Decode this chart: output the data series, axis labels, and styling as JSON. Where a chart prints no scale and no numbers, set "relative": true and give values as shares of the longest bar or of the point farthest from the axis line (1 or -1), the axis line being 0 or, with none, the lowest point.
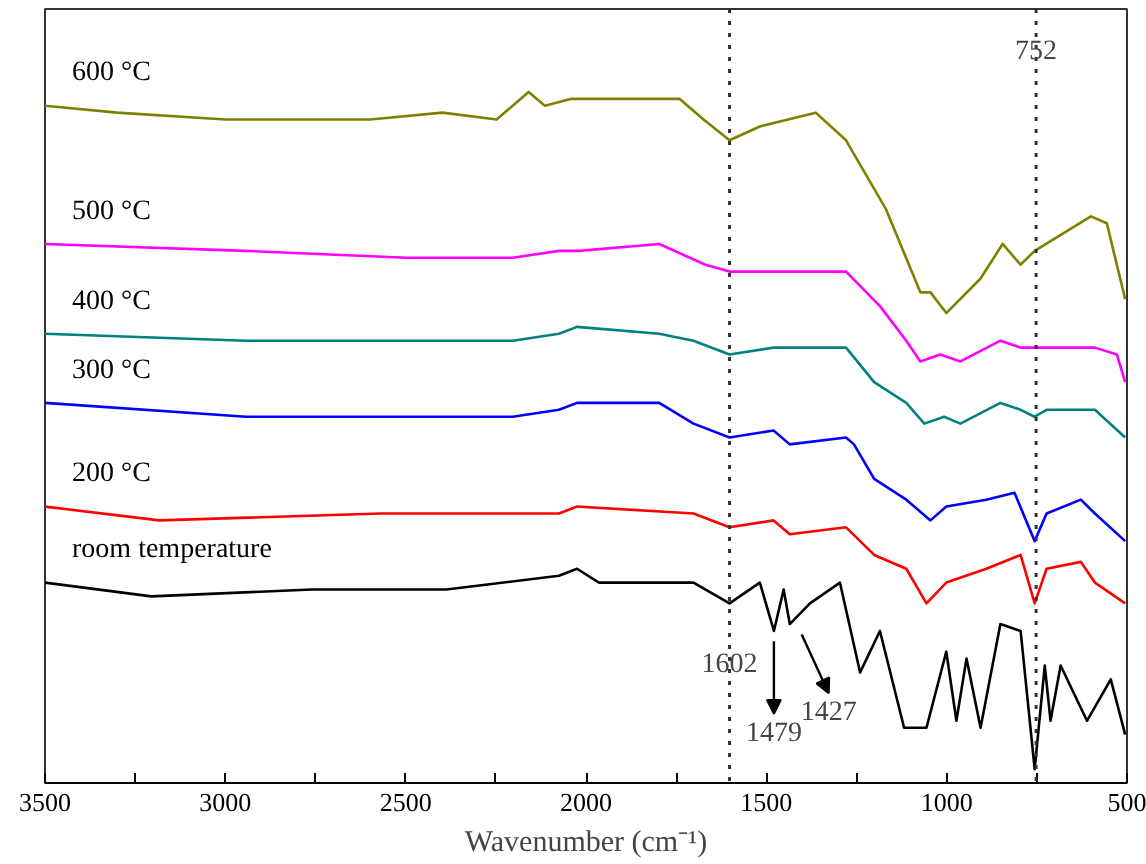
{
  "chart_data": {
    "type": "line",
    "relative": true,
    "xlabel": "Wavenumber (cm⁻¹)",
    "xlim": [
      3500,
      500
    ],
    "xticks": [
      3500,
      {
        "value": 3250,
        "label": null
      },
      3000,
      {
        "value": 2750,
        "label": null
      },
      2500,
      {
        "value": 2250,
        "label": null
      },
      2000,
      {
        "value": 1750,
        "label": null
      },
      1500,
      {
        "value": 1250,
        "label": null
      },
      1000,
      {
        "value": 750,
        "label": null
      },
      500
    ],
    "grid": false,
    "legend": false,
    "line_style": "solid",
    "marker": "none",
    "series": [
      {
        "name": "600 °C",
        "color": "#808000",
        "x": [
          3500,
          3300,
          3000,
          2799,
          2598,
          2398,
          2248,
          2159,
          2114,
          2040,
          1964,
          1741,
          1674,
          1602,
          1518,
          1363,
          1279,
          1168,
          1073,
          1045,
          1001,
          906,
          845,
          795,
          756,
          600,
          556,
          505
        ],
        "values": [
          0.98,
          0.97,
          0.96,
          0.96,
          0.96,
          0.97,
          0.96,
          1.0,
          0.98,
          0.99,
          0.99,
          0.99,
          0.96,
          0.93,
          0.95,
          0.97,
          0.93,
          0.83,
          0.71,
          0.71,
          0.68,
          0.73,
          0.78,
          0.75,
          0.77,
          0.82,
          0.81,
          0.7
        ]
      },
      {
        "name": "500 °C",
        "color": "#ff00ff",
        "x": [
          3500,
          2943,
          2498,
          2203,
          2075,
          2019,
          1797,
          1669,
          1602,
          1518,
          1279,
          1185,
          1112,
          1073,
          1018,
          962,
          851,
          795,
          589,
          528,
          505
        ],
        "values": [
          0.78,
          0.77,
          0.76,
          0.76,
          0.77,
          0.77,
          0.78,
          0.75,
          0.74,
          0.74,
          0.74,
          0.69,
          0.64,
          0.61,
          0.62,
          0.61,
          0.64,
          0.63,
          0.63,
          0.62,
          0.58
        ]
      },
      {
        "name": "400 °C",
        "color": "#008080",
        "x": [
          3500,
          2943,
          2387,
          2203,
          2075,
          2025,
          1797,
          1702,
          1602,
          1480,
          1279,
          1201,
          1112,
          1062,
          1007,
          962,
          851,
          795,
          756,
          723,
          589,
          505
        ],
        "values": [
          0.65,
          0.64,
          0.64,
          0.64,
          0.65,
          0.66,
          0.65,
          0.64,
          0.62,
          0.63,
          0.63,
          0.58,
          0.55,
          0.52,
          0.53,
          0.52,
          0.55,
          0.54,
          0.53,
          0.54,
          0.54,
          0.5
        ]
      },
      {
        "name": "300 °C",
        "color": "#0000ff",
        "x": [
          3500,
          2943,
          2387,
          2203,
          2075,
          2025,
          1797,
          1702,
          1602,
          1480,
          1435,
          1279,
          1257,
          1201,
          1112,
          1045,
          1001,
          890,
          812,
          756,
          723,
          628,
          589,
          505
        ],
        "values": [
          0.55,
          0.53,
          0.53,
          0.53,
          0.54,
          0.55,
          0.55,
          0.52,
          0.5,
          0.51,
          0.49,
          0.5,
          0.49,
          0.44,
          0.41,
          0.38,
          0.4,
          0.41,
          0.42,
          0.35,
          0.39,
          0.41,
          0.39,
          0.35
        ]
      },
      {
        "name": "200 °C",
        "color": "#ff0000",
        "x": [
          3500,
          3183,
          2570,
          2075,
          2025,
          1702,
          1602,
          1480,
          1435,
          1279,
          1201,
          1112,
          1056,
          1001,
          890,
          795,
          756,
          723,
          628,
          589,
          505
        ],
        "values": [
          0.4,
          0.38,
          0.39,
          0.39,
          0.4,
          0.39,
          0.37,
          0.38,
          0.36,
          0.37,
          0.33,
          0.31,
          0.26,
          0.29,
          0.31,
          0.33,
          0.26,
          0.31,
          0.32,
          0.29,
          0.26
        ]
      },
      {
        "name": "room temperature",
        "color": "#000000",
        "x": [
          3500,
          3205,
          2760,
          2387,
          2075,
          2025,
          1964,
          1702,
          1602,
          1518,
          1479,
          1452,
          1435,
          1379,
          1296,
          1240,
          1185,
          1118,
          1056,
          1001,
          973,
          945,
          906,
          851,
          795,
          756,
          728,
          712,
          684,
          611,
          545,
          505
        ],
        "values": [
          0.29,
          0.27,
          0.28,
          0.28,
          0.3,
          0.31,
          0.29,
          0.29,
          0.26,
          0.29,
          0.22,
          0.28,
          0.23,
          0.26,
          0.29,
          0.16,
          0.22,
          0.08,
          0.08,
          0.19,
          0.09,
          0.18,
          0.08,
          0.23,
          0.22,
          0.02,
          0.17,
          0.09,
          0.17,
          0.09,
          0.15,
          0.07
        ]
      }
    ],
    "ref_lines": [
      {
        "axis": "x",
        "value": 1602,
        "label": null,
        "line_style": "dotted"
      },
      {
        "axis": "x",
        "value": 752,
        "label": "752",
        "line_style": "dotted"
      }
    ],
    "annotations": [
      {
        "text": "1602",
        "x": 1602,
        "y": 0.26
      },
      {
        "text": "1479",
        "x": 1479,
        "y": 0.22
      },
      {
        "text": "1427",
        "x": 1427,
        "y": 0.23
      }
    ]
  }
}
